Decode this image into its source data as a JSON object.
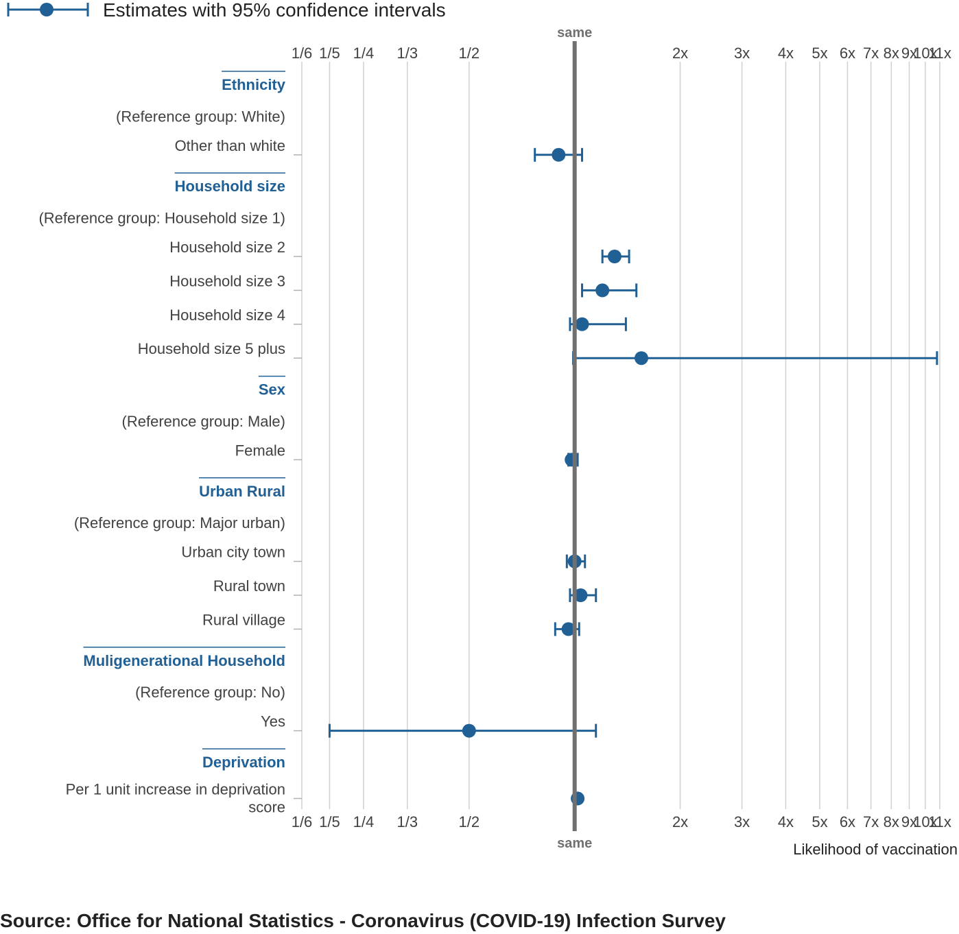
{
  "legend": {
    "label": "Estimates with 95% confidence intervals"
  },
  "reference_label": "same",
  "source": "Source: Office for National Statistics - Coronavirus (COVID-19) Infection Survey",
  "colors": {
    "accent": "#206095",
    "grid": "#d0d0d0",
    "reference": "#707071",
    "text": "#414042"
  },
  "chart_data": {
    "type": "forest",
    "scale": "log",
    "xlabel": "Likelihood of vaccination",
    "xlim": [
      0.1667,
      11
    ],
    "ticks": [
      {
        "value": 0.1667,
        "label": "1/6"
      },
      {
        "value": 0.2,
        "label": "1/5"
      },
      {
        "value": 0.25,
        "label": "1/4"
      },
      {
        "value": 0.3333,
        "label": "1/3"
      },
      {
        "value": 0.5,
        "label": "1/2"
      },
      {
        "value": 2,
        "label": "2x"
      },
      {
        "value": 3,
        "label": "3x"
      },
      {
        "value": 4,
        "label": "4x"
      },
      {
        "value": 5,
        "label": "5x"
      },
      {
        "value": 6,
        "label": "6x"
      },
      {
        "value": 7,
        "label": "7x"
      },
      {
        "value": 8,
        "label": "8x"
      },
      {
        "value": 9,
        "label": "9x"
      },
      {
        "value": 10,
        "label": "10x"
      },
      {
        "value": 11,
        "label": "11x"
      }
    ],
    "reference_value": 1,
    "groups": [
      {
        "name": "Ethnicity",
        "reference": "(Reference group: White)",
        "rows": [
          {
            "label": "Other than white",
            "estimate": 0.9,
            "lower": 0.77,
            "upper": 1.05
          }
        ]
      },
      {
        "name": "Household size",
        "reference": "(Reference group: Household size 1)",
        "rows": [
          {
            "label": "Household size 2",
            "estimate": 1.3,
            "lower": 1.2,
            "upper": 1.43
          },
          {
            "label": "Household size 3",
            "estimate": 1.2,
            "lower": 1.05,
            "upper": 1.5
          },
          {
            "label": "Household size 4",
            "estimate": 1.05,
            "lower": 0.97,
            "upper": 1.4
          },
          {
            "label": "Household size 5 plus",
            "estimate": 1.55,
            "lower": 0.99,
            "upper": 10.8
          }
        ]
      },
      {
        "name": "Sex",
        "reference": "(Reference group: Male)",
        "rows": [
          {
            "label": "Female",
            "estimate": 0.98,
            "lower": 0.96,
            "upper": 1.02
          }
        ]
      },
      {
        "name": "Urban Rural",
        "reference": "(Reference group: Major urban)",
        "rows": [
          {
            "label": "Urban city town",
            "estimate": 1.0,
            "lower": 0.95,
            "upper": 1.07
          },
          {
            "label": "Rural town",
            "estimate": 1.04,
            "lower": 0.97,
            "upper": 1.15
          },
          {
            "label": "Rural village",
            "estimate": 0.96,
            "lower": 0.88,
            "upper": 1.03
          }
        ]
      },
      {
        "name": "Muligenerational Household",
        "reference": "(Reference group: No)",
        "rows": [
          {
            "label": "Yes",
            "estimate": 0.5,
            "lower": 0.2,
            "upper": 1.15
          }
        ]
      },
      {
        "name": "Deprivation",
        "reference": "",
        "rows": [
          {
            "label": "Per 1 unit increase in deprivation score",
            "estimate": 1.02,
            "lower": null,
            "upper": null
          }
        ]
      }
    ]
  }
}
